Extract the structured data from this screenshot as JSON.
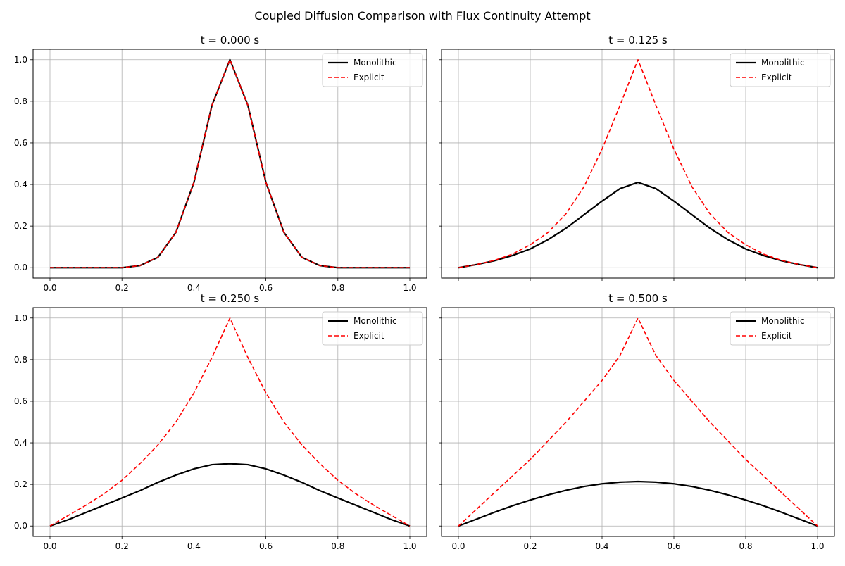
{
  "figure": {
    "title": "Coupled Diffusion Comparison with Flux Continuity Attempt"
  },
  "style": {
    "monolithic_color": "#000000",
    "explicit_color": "#ff0000",
    "grid_color": "#b0b0b0"
  },
  "chart_data": [
    {
      "type": "line",
      "title": "t = 0.000 s",
      "xlim": [
        0,
        1
      ],
      "ylim": [
        -0.05,
        1.05
      ],
      "xticks": [
        "0.0",
        "0.2",
        "0.4",
        "0.6",
        "0.8",
        "1.0"
      ],
      "yticks": [
        "0.0",
        "0.2",
        "0.4",
        "0.6",
        "0.8",
        "1.0"
      ],
      "grid": true,
      "legend": {
        "position": "top-right",
        "entries": [
          "Monolithic",
          "Explicit"
        ]
      },
      "series": [
        {
          "name": "Monolithic",
          "style": "solid",
          "x": [
            0.0,
            0.05,
            0.1,
            0.15,
            0.2,
            0.25,
            0.3,
            0.35,
            0.4,
            0.45,
            0.5,
            0.55,
            0.6,
            0.65,
            0.7,
            0.75,
            0.8,
            0.85,
            0.9,
            0.95,
            1.0
          ],
          "y": [
            0.0,
            0.0,
            0.0,
            0.0,
            0.0,
            0.01,
            0.05,
            0.17,
            0.41,
            0.78,
            1.0,
            0.78,
            0.41,
            0.17,
            0.05,
            0.01,
            0.0,
            0.0,
            0.0,
            0.0,
            0.0
          ]
        },
        {
          "name": "Explicit",
          "style": "dashed",
          "x": [
            0.0,
            0.05,
            0.1,
            0.15,
            0.2,
            0.25,
            0.3,
            0.35,
            0.4,
            0.45,
            0.5,
            0.55,
            0.6,
            0.65,
            0.7,
            0.75,
            0.8,
            0.85,
            0.9,
            0.95,
            1.0
          ],
          "y": [
            0.0,
            0.0,
            0.0,
            0.0,
            0.0,
            0.01,
            0.05,
            0.17,
            0.41,
            0.78,
            1.0,
            0.78,
            0.41,
            0.17,
            0.05,
            0.01,
            0.0,
            0.0,
            0.0,
            0.0,
            0.0
          ]
        }
      ]
    },
    {
      "type": "line",
      "title": "t = 0.125 s",
      "xlim": [
        0,
        1
      ],
      "ylim": [
        -0.05,
        1.05
      ],
      "xticks": [
        "",
        "",
        "",
        "",
        "",
        ""
      ],
      "yticks": [
        "",
        "",
        "",
        "",
        "",
        ""
      ],
      "grid": true,
      "legend": {
        "position": "top-right",
        "entries": [
          "Monolithic",
          "Explicit"
        ]
      },
      "series": [
        {
          "name": "Monolithic",
          "style": "solid",
          "x": [
            0.0,
            0.05,
            0.1,
            0.15,
            0.2,
            0.25,
            0.3,
            0.35,
            0.4,
            0.45,
            0.5,
            0.55,
            0.6,
            0.65,
            0.7,
            0.75,
            0.8,
            0.85,
            0.9,
            0.95,
            1.0
          ],
          "y": [
            0.0,
            0.015,
            0.033,
            0.058,
            0.09,
            0.135,
            0.19,
            0.255,
            0.32,
            0.38,
            0.41,
            0.38,
            0.32,
            0.255,
            0.19,
            0.135,
            0.09,
            0.058,
            0.033,
            0.015,
            0.0
          ]
        },
        {
          "name": "Explicit",
          "style": "dashed",
          "x": [
            0.0,
            0.05,
            0.1,
            0.15,
            0.2,
            0.25,
            0.3,
            0.35,
            0.4,
            0.45,
            0.5,
            0.55,
            0.6,
            0.65,
            0.7,
            0.75,
            0.8,
            0.85,
            0.9,
            0.95,
            1.0
          ],
          "y": [
            0.0,
            0.015,
            0.035,
            0.065,
            0.11,
            0.17,
            0.26,
            0.39,
            0.57,
            0.78,
            1.0,
            0.78,
            0.57,
            0.39,
            0.26,
            0.17,
            0.11,
            0.065,
            0.035,
            0.015,
            0.0
          ]
        }
      ]
    },
    {
      "type": "line",
      "title": "t = 0.250 s",
      "xlim": [
        0,
        1
      ],
      "ylim": [
        -0.05,
        1.05
      ],
      "xticks": [
        "0.0",
        "0.2",
        "0.4",
        "0.6",
        "0.8",
        "1.0"
      ],
      "yticks": [
        "0.0",
        "0.2",
        "0.4",
        "0.6",
        "0.8",
        "1.0"
      ],
      "grid": true,
      "legend": {
        "position": "top-right",
        "entries": [
          "Monolithic",
          "Explicit"
        ]
      },
      "series": [
        {
          "name": "Monolithic",
          "style": "solid",
          "x": [
            0.0,
            0.05,
            0.1,
            0.15,
            0.2,
            0.25,
            0.3,
            0.35,
            0.4,
            0.45,
            0.5,
            0.55,
            0.6,
            0.65,
            0.7,
            0.75,
            0.8,
            0.85,
            0.9,
            0.95,
            1.0
          ],
          "y": [
            0.0,
            0.03,
            0.065,
            0.1,
            0.135,
            0.17,
            0.21,
            0.245,
            0.275,
            0.295,
            0.3,
            0.295,
            0.275,
            0.245,
            0.21,
            0.17,
            0.135,
            0.1,
            0.065,
            0.03,
            0.0
          ]
        },
        {
          "name": "Explicit",
          "style": "dashed",
          "x": [
            0.0,
            0.05,
            0.1,
            0.15,
            0.2,
            0.25,
            0.3,
            0.35,
            0.4,
            0.45,
            0.5,
            0.55,
            0.6,
            0.65,
            0.7,
            0.75,
            0.8,
            0.85,
            0.9,
            0.95,
            1.0
          ],
          "y": [
            0.0,
            0.05,
            0.1,
            0.155,
            0.22,
            0.3,
            0.39,
            0.5,
            0.64,
            0.81,
            1.0,
            0.81,
            0.64,
            0.5,
            0.39,
            0.3,
            0.22,
            0.155,
            0.1,
            0.05,
            0.0
          ]
        }
      ]
    },
    {
      "type": "line",
      "title": "t = 0.500 s",
      "xlim": [
        0,
        1
      ],
      "ylim": [
        -0.05,
        1.05
      ],
      "xticks": [
        "0.0",
        "0.2",
        "0.4",
        "0.6",
        "0.8",
        "1.0"
      ],
      "yticks": [
        "",
        "",
        "",
        "",
        "",
        ""
      ],
      "grid": true,
      "legend": {
        "position": "top-right",
        "entries": [
          "Monolithic",
          "Explicit"
        ]
      },
      "series": [
        {
          "name": "Monolithic",
          "style": "solid",
          "x": [
            0.0,
            0.05,
            0.1,
            0.15,
            0.2,
            0.25,
            0.3,
            0.35,
            0.4,
            0.45,
            0.5,
            0.55,
            0.6,
            0.65,
            0.7,
            0.75,
            0.8,
            0.85,
            0.9,
            0.95,
            1.0
          ],
          "y": [
            0.0,
            0.033,
            0.066,
            0.097,
            0.125,
            0.15,
            0.172,
            0.19,
            0.203,
            0.211,
            0.214,
            0.211,
            0.203,
            0.19,
            0.172,
            0.15,
            0.125,
            0.097,
            0.066,
            0.033,
            0.0
          ]
        },
        {
          "name": "Explicit",
          "style": "dashed",
          "x": [
            0.0,
            0.05,
            0.1,
            0.15,
            0.2,
            0.25,
            0.3,
            0.35,
            0.4,
            0.45,
            0.5,
            0.55,
            0.6,
            0.65,
            0.7,
            0.75,
            0.8,
            0.85,
            0.9,
            0.95,
            1.0
          ],
          "y": [
            0.0,
            0.08,
            0.16,
            0.24,
            0.32,
            0.41,
            0.5,
            0.6,
            0.7,
            0.82,
            1.0,
            0.82,
            0.7,
            0.6,
            0.5,
            0.41,
            0.32,
            0.24,
            0.16,
            0.08,
            0.0
          ]
        }
      ]
    }
  ]
}
